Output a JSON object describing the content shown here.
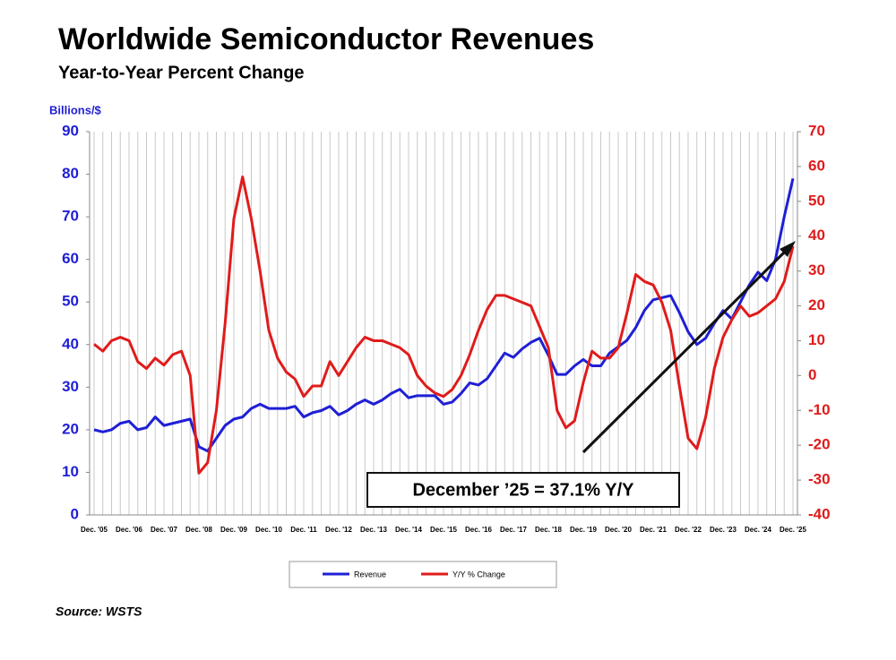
{
  "chart_data": {
    "type": "line",
    "title": "Worldwide Semiconductor Revenues",
    "subtitle": "Year-to-Year Percent Change",
    "ylabel": "Billions/$",
    "source": "Source: WSTS",
    "annotation": "December ’25 = 37.1% Y/Y",
    "categories": [
      "Dec. '05",
      null,
      null,
      null,
      "Dec. '06",
      null,
      null,
      null,
      "Dec. '07",
      null,
      null,
      null,
      "Dec. '08",
      null,
      null,
      null,
      "Dec. '09",
      null,
      null,
      null,
      "Dec. '10",
      null,
      null,
      null,
      "Dec. '11",
      null,
      null,
      null,
      "Dec. '12",
      null,
      null,
      null,
      "Dec. '13",
      null,
      null,
      null,
      "Dec. '14",
      null,
      null,
      null,
      "Dec. '15",
      null,
      null,
      null,
      "Dec. '16",
      null,
      null,
      null,
      "Dec. '17",
      null,
      null,
      null,
      "Dec. '18",
      null,
      null,
      null,
      "Dec. '19",
      null,
      null,
      null,
      "Dec. '20",
      null,
      null,
      null,
      "Dec. '21",
      null,
      null,
      null,
      "Dec. '22",
      null,
      null,
      null,
      "Dec. '23",
      null,
      null,
      null,
      "Dec. '24",
      null,
      null,
      null,
      "Dec. '25"
    ],
    "series": [
      {
        "name": "Revenue",
        "color": "#1f1fd6",
        "axis": "y",
        "values": [
          20,
          19.5,
          20,
          21.5,
          22,
          20,
          20.5,
          23,
          21,
          21.5,
          22,
          22.5,
          16,
          15,
          18,
          21,
          22.5,
          23,
          25,
          26,
          25,
          25,
          25,
          25.5,
          23,
          24,
          24.5,
          25.5,
          23.5,
          24.5,
          26,
          27,
          26,
          27,
          28.5,
          29.5,
          27.5,
          28,
          28,
          28,
          26,
          26.5,
          28.5,
          31,
          30.5,
          32,
          35,
          38,
          37,
          39,
          40.5,
          41.5,
          37.5,
          33,
          33,
          35,
          36.5,
          35,
          35,
          38,
          39.5,
          41,
          44,
          48,
          50.5,
          51,
          51.5,
          47.5,
          43,
          40,
          41.5,
          45,
          48,
          46,
          50,
          54,
          57,
          55,
          60,
          70,
          79
        ]
      },
      {
        "name": "Y/Y % Change",
        "color": "#e01b1b",
        "axis": "y2",
        "values": [
          9,
          7,
          10,
          11,
          10,
          4,
          2,
          5,
          3,
          6,
          7,
          0,
          -28,
          -25,
          -10,
          15,
          45,
          57,
          45,
          30,
          13,
          5,
          1,
          -1,
          -6,
          -3,
          -3,
          4,
          0,
          4,
          8,
          11,
          10,
          10,
          9,
          8,
          6,
          0,
          -3,
          -5,
          -6,
          -4,
          0,
          6,
          13,
          19,
          23,
          23,
          22,
          21,
          20,
          14,
          8,
          -10,
          -15,
          -13,
          -2,
          7,
          5,
          5,
          8,
          18,
          29,
          27,
          26,
          21,
          13,
          -3,
          -18,
          -21,
          -12,
          2,
          11,
          16,
          20,
          17,
          18,
          20,
          22,
          27,
          37.1
        ]
      }
    ],
    "ylim": [
      0,
      90
    ],
    "yticks": [
      0,
      10,
      20,
      30,
      40,
      50,
      60,
      70,
      80,
      90
    ],
    "y2lim": [
      -40,
      70
    ],
    "y2ticks": [
      -40,
      -30,
      -20,
      -10,
      0,
      10,
      20,
      30,
      40,
      50,
      60,
      70
    ],
    "grid": "x",
    "legend": "bottom"
  }
}
